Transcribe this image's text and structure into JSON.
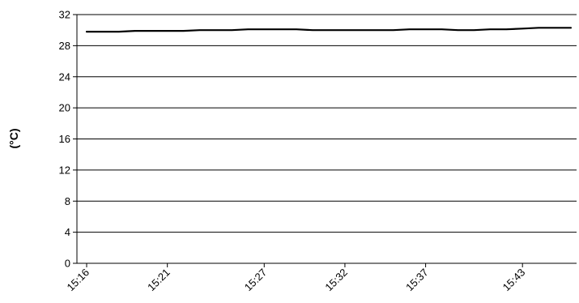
{
  "chart_data": {
    "type": "line",
    "title": "",
    "xlabel": "",
    "ylabel": "(°C)",
    "ylim": [
      0,
      32
    ],
    "yticks": [
      0,
      4,
      8,
      12,
      16,
      20,
      24,
      28,
      32
    ],
    "xticks": [
      "15:16",
      "15:21",
      "15:27",
      "15:32",
      "15:37",
      "15:43"
    ],
    "grid": "horizontal",
    "x": [
      "15:16",
      "15:17",
      "15:18",
      "15:19",
      "15:20",
      "15:21",
      "15:22",
      "15:23",
      "15:24",
      "15:25",
      "15:26",
      "15:27",
      "15:28",
      "15:29",
      "15:30",
      "15:31",
      "15:32",
      "15:33",
      "15:34",
      "15:35",
      "15:36",
      "15:37",
      "15:38",
      "15:39",
      "15:40",
      "15:41",
      "15:42",
      "15:43",
      "15:44",
      "15:45",
      "15:46"
    ],
    "series": [
      {
        "color": "#000000",
        "values": [
          29.8,
          29.8,
          29.8,
          29.9,
          29.9,
          29.9,
          29.9,
          30.0,
          30.0,
          30.0,
          30.1,
          30.1,
          30.1,
          30.1,
          30.0,
          30.0,
          30.0,
          30.0,
          30.0,
          30.0,
          30.1,
          30.1,
          30.1,
          30.0,
          30.0,
          30.1,
          30.1,
          30.2,
          30.3,
          30.3,
          30.3
        ]
      }
    ]
  }
}
